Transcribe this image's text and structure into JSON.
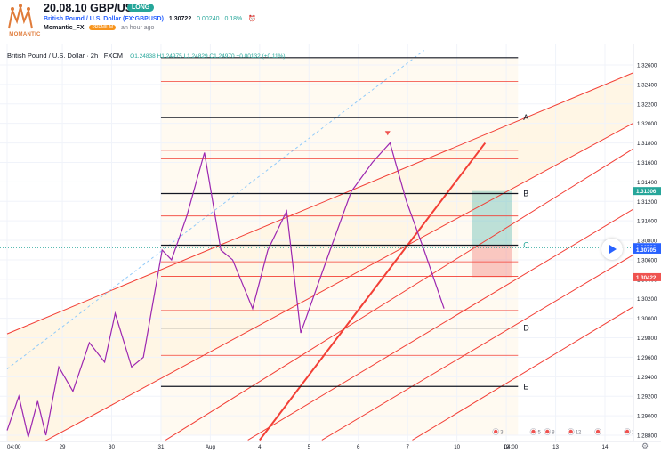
{
  "header": {
    "title": "20.08.10 GBP/USD",
    "badge": "LONG",
    "symbol_full": "British Pound / U.S. Dollar (FX:GBPUSD)",
    "price": "1.30722",
    "change": "0.00240",
    "change_pct": "0.18%",
    "author": "Momantic_FX",
    "premium_label": "PREMIUM",
    "published": "an hour ago",
    "logo_text": "MOMANTIC"
  },
  "legend": {
    "symbol": "British Pound / U.S. Dollar · 2h · FXCM",
    "ohlc": "O1.24838 H1.24975 L1.24829 C1.24970 +0.00132 (+0.11%)"
  },
  "chart_data": {
    "type": "candlestick",
    "symbol": "GBPUSD",
    "timeframe": "2h",
    "y_axis": {
      "range": [
        1.2875,
        1.3275
      ],
      "ticks": [
        "1.32600",
        "1.32400",
        "1.32200",
        "1.32000",
        "1.31800",
        "1.31600",
        "1.31400",
        "1.31200",
        "1.31000",
        "1.30800",
        "1.30600",
        "1.30400",
        "1.30200",
        "1.30000",
        "1.29800",
        "1.29600",
        "1.29400",
        "1.29200",
        "1.29000",
        "1.28800"
      ]
    },
    "x_axis": {
      "ticks": [
        "04:00",
        "29",
        "30",
        "31",
        "Aug",
        "4",
        "5",
        "6",
        "7",
        "10",
        "12",
        "13",
        "14"
      ],
      "tick_times": [
        0,
        4.7,
        8.9,
        13.1,
        17.3,
        21.5,
        25.7,
        29.9,
        34.1,
        38.3,
        42.5,
        46.7,
        50.9
      ],
      "range": [
        0,
        56.5
      ],
      "last_candle_time": 39.6,
      "extra_label": "04:00",
      "extra_label_time": 42.9
    },
    "candles": [],
    "wave_path": [
      [
        0,
        1.2885
      ],
      [
        1.0,
        1.292
      ],
      [
        1.8,
        1.2878
      ],
      [
        2.6,
        1.2915
      ],
      [
        3.3,
        1.288
      ],
      [
        4.4,
        1.295
      ],
      [
        5.6,
        1.2925
      ],
      [
        7.0,
        1.2975
      ],
      [
        8.3,
        1.2955
      ],
      [
        9.2,
        1.3005
      ],
      [
        10.6,
        1.295
      ],
      [
        11.6,
        1.296
      ],
      [
        13.2,
        1.307
      ],
      [
        14.0,
        1.306
      ],
      [
        15.3,
        1.3105
      ],
      [
        16.8,
        1.317
      ],
      [
        18.2,
        1.307
      ],
      [
        19.2,
        1.306
      ],
      [
        20.9,
        1.301
      ],
      [
        22.2,
        1.307
      ],
      [
        23.8,
        1.311
      ],
      [
        25.0,
        1.2985
      ],
      [
        27.5,
        1.307
      ],
      [
        29.3,
        1.313
      ],
      [
        31.1,
        1.316
      ],
      [
        32.6,
        1.318
      ],
      [
        34.0,
        1.312
      ],
      [
        35.5,
        1.307
      ],
      [
        37.2,
        1.301
      ]
    ],
    "horizontal_levels": [
      {
        "value": 1.32675,
        "style": "black"
      },
      {
        "value": 1.3243,
        "style": "red"
      },
      {
        "value": 1.3206,
        "style": "black",
        "label": "A"
      },
      {
        "value": 1.31725,
        "style": "red"
      },
      {
        "value": 1.31635,
        "style": "red"
      },
      {
        "value": 1.3128,
        "style": "black",
        "label": "B"
      },
      {
        "value": 1.3105,
        "style": "red"
      },
      {
        "value": 1.3075,
        "style": "black",
        "label": "C"
      },
      {
        "value": 1.3058,
        "style": "red"
      },
      {
        "value": 1.3043,
        "style": "red"
      },
      {
        "value": 1.3008,
        "style": "red"
      },
      {
        "value": 1.299,
        "style": "black",
        "label": "D"
      },
      {
        "value": 1.2962,
        "style": "red"
      },
      {
        "value": 1.293,
        "style": "black",
        "label": "E"
      }
    ],
    "level_span": [
      13.1,
      43.5
    ],
    "channel_lines": [
      {
        "from": [
          0,
          1.2984
        ],
        "to": [
          56.5,
          1.3268
        ]
      },
      {
        "from": [
          0,
          1.2853
        ],
        "to": [
          56.5,
          1.3221
        ]
      },
      {
        "from": [
          13.5,
          1.2875
        ],
        "to": [
          56.5,
          1.3198
        ]
      },
      {
        "from": [
          20.5,
          1.2875
        ],
        "to": [
          56.5,
          1.3135
        ]
      },
      {
        "from": [
          26.8,
          1.2875
        ],
        "to": [
          56.5,
          1.3088
        ]
      },
      {
        "from": [
          34.5,
          1.2875
        ],
        "to": [
          56.5,
          1.3035
        ]
      },
      {
        "from": [
          21.5,
          1.2875
        ],
        "to": [
          40.7,
          1.318
        ],
        "style": "thick"
      }
    ],
    "dashed_trend": [
      [
        0,
        1.2948
      ],
      [
        35.5,
        1.3275
      ]
    ],
    "position": {
      "entry": 1.3075,
      "target": 1.31306,
      "stop": 1.30422,
      "start_time": 39.6,
      "end_time": 43.0
    },
    "price_labels": [
      {
        "text": "1.31306",
        "value": 1.31306,
        "color": "#26a69a"
      },
      {
        "text": "1.30730",
        "value": 1.3073,
        "color": "#2962ff"
      },
      {
        "text": "1.30705",
        "value": 1.30705,
        "color": "#2962ff"
      },
      {
        "text": "1.30422",
        "value": 1.30422,
        "color": "#ef5350"
      }
    ],
    "current_price": 1.30722,
    "event_markers": [
      {
        "time": 41.6,
        "label": "3"
      },
      {
        "time": 44.8,
        "label": "5"
      },
      {
        "time": 46.0,
        "label": "8"
      },
      {
        "time": 48.0,
        "label": "12"
      },
      {
        "time": 50.3,
        "label": ""
      },
      {
        "time": 52.8,
        "label": "2"
      }
    ],
    "colors": {
      "up": "#26a69a",
      "down": "#ef5350",
      "channel": "#f23f36",
      "wave": "#9c27b0",
      "fill": "#fff6e5",
      "bg": "#ffffff"
    }
  }
}
